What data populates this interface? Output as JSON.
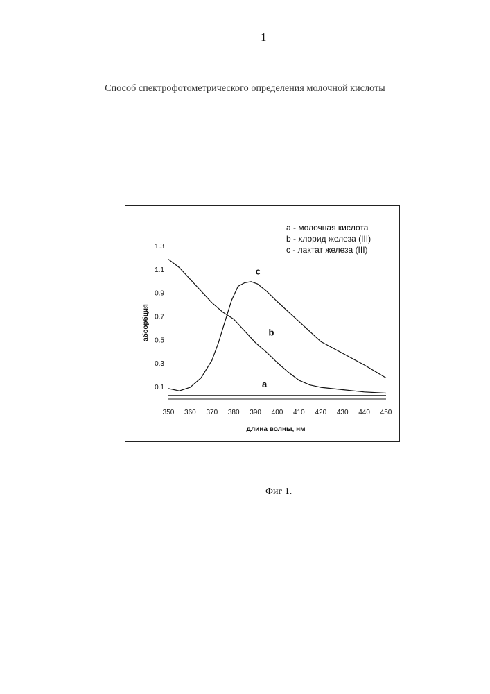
{
  "page": {
    "number": "1",
    "title": "Способ спектрофотометрического определения молочной кислоты",
    "caption": "Фиг 1."
  },
  "chart_data": {
    "type": "line",
    "xlabel": "длина волны, нм",
    "ylabel": "абсорбция",
    "xlim": [
      350,
      450
    ],
    "ylim": [
      0,
      1.3
    ],
    "xticks": [
      "350",
      "360",
      "370",
      "380",
      "390",
      "400",
      "410",
      "420",
      "430",
      "440",
      "450"
    ],
    "yticks": [
      "0.1",
      "0.3",
      "0.5",
      "0.7",
      "0.9",
      "1.1",
      "1.3"
    ],
    "grid": false,
    "legend_position": "top-right",
    "legend": [
      "a - молочная кислота",
      "b - хлорид железа (III)",
      "c - лактат железа (III)"
    ],
    "series": [
      {
        "name": "a",
        "color": "#111111",
        "x": [
          350,
          360,
          370,
          380,
          390,
          400,
          410,
          420,
          430,
          440,
          450
        ],
        "y": [
          0.03,
          0.03,
          0.03,
          0.03,
          0.03,
          0.03,
          0.03,
          0.03,
          0.03,
          0.03,
          0.03
        ]
      },
      {
        "name": "b",
        "color": "#111111",
        "x": [
          350,
          355,
          360,
          365,
          370,
          375,
          380,
          385,
          390,
          395,
          400,
          405,
          410,
          415,
          420,
          430,
          440,
          450
        ],
        "y": [
          1.19,
          1.12,
          1.02,
          0.92,
          0.82,
          0.74,
          0.68,
          0.58,
          0.48,
          0.4,
          0.31,
          0.23,
          0.16,
          0.12,
          0.1,
          0.08,
          0.06,
          0.05
        ]
      },
      {
        "name": "c",
        "color": "#111111",
        "x": [
          350,
          355,
          360,
          365,
          370,
          373,
          376,
          379,
          382,
          385,
          388,
          391,
          395,
          400,
          410,
          420,
          430,
          440,
          450
        ],
        "y": [
          0.09,
          0.07,
          0.1,
          0.18,
          0.33,
          0.48,
          0.66,
          0.84,
          0.96,
          0.99,
          1.0,
          0.98,
          0.92,
          0.83,
          0.66,
          0.49,
          0.39,
          0.29,
          0.18
        ]
      }
    ],
    "labels": [
      {
        "text": "a",
        "x": 393,
        "y": 0.1
      },
      {
        "text": "b",
        "x": 396,
        "y": 0.54
      },
      {
        "text": "c",
        "x": 390,
        "y": 1.06
      }
    ]
  }
}
